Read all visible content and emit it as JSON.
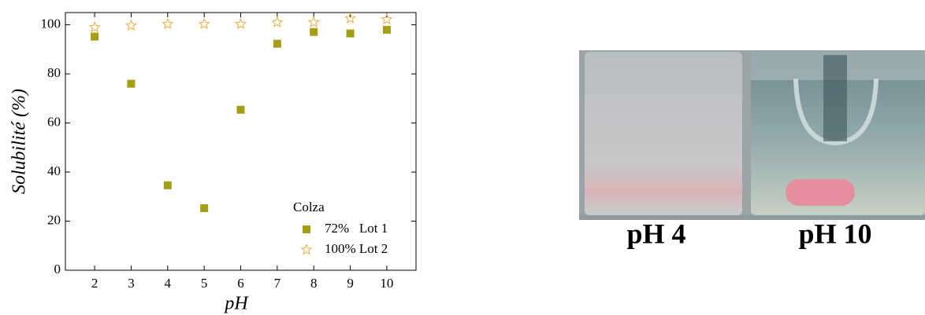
{
  "chart_data": {
    "type": "scatter",
    "xlabel": "pH",
    "ylabel": "Solubilité (%)",
    "x": [
      2,
      3,
      4,
      5,
      6,
      7,
      8,
      9,
      10
    ],
    "series": [
      {
        "name": "72%   Lot 1",
        "color": "#a39e14",
        "marker": "square",
        "values": [
          95.2,
          76,
          34.6,
          25.3,
          65.4,
          92.3,
          97.1,
          96.5,
          98
        ]
      },
      {
        "name": "100% Lot 2",
        "color": "#e8b95a",
        "marker": "star",
        "values": [
          99,
          99.7,
          100.3,
          100.3,
          100.3,
          101,
          101,
          102.6,
          102.2
        ]
      }
    ],
    "legend_title": "Colza",
    "legend": "lower right",
    "xlim": [
      1.2,
      10.8
    ],
    "xticks": [
      2,
      3,
      4,
      5,
      6,
      7,
      8,
      9,
      10
    ],
    "ylim": [
      0,
      105
    ],
    "yticks": [
      0,
      20,
      40,
      60,
      80,
      100
    ]
  },
  "photo": {
    "labels": [
      "pH 4",
      "pH 10"
    ]
  }
}
